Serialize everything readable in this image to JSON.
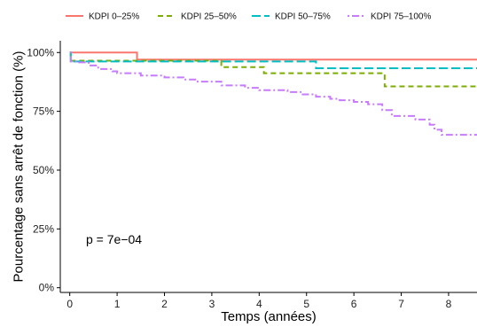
{
  "chart_data": {
    "type": "line",
    "subtype": "kaplan-meier-step",
    "xlabel": "Temps (années)",
    "ylabel": "Pourcentage sans arrêt de fonction (%)",
    "xlim": [
      -0.2,
      8.6
    ],
    "ylim": [
      -0.02,
      1.05
    ],
    "xticks": [
      0,
      1,
      2,
      3,
      4,
      5,
      6,
      7,
      8
    ],
    "xtick_labels": [
      "0",
      "1",
      "2",
      "3",
      "4",
      "5",
      "6",
      "7",
      "8"
    ],
    "yticks": [
      0,
      0.25,
      0.5,
      0.75,
      1.0
    ],
    "ytick_labels": [
      "0%",
      "25%",
      "50%",
      "75%",
      "100%"
    ],
    "grid": false,
    "legend_position": "top",
    "annotation": "p = 7e−04",
    "series": [
      {
        "name": "KDPI 0–25%",
        "color": "#F8766D",
        "dash": "solid",
        "x": [
          0,
          1.42,
          8.6
        ],
        "y": [
          1.0,
          0.97,
          0.97
        ]
      },
      {
        "name": "KDPI 25–50%",
        "color": "#7CAE00",
        "dash": "dashed",
        "x": [
          0,
          0.02,
          3.2,
          4.1,
          6.65,
          8.6
        ],
        "y": [
          1.0,
          0.965,
          0.938,
          0.912,
          0.856,
          0.856
        ]
      },
      {
        "name": "KDPI 50–75%",
        "color": "#00BFC4",
        "dash": "longdash",
        "x": [
          0,
          0.02,
          5.2,
          8.6
        ],
        "y": [
          1.0,
          0.962,
          0.933,
          0.933
        ]
      },
      {
        "name": "KDPI 75–100%",
        "color": "#C77CFF",
        "dash": "dotdash",
        "x": [
          0,
          0.02,
          0.2,
          0.4,
          0.6,
          0.9,
          1.0,
          1.5,
          2.0,
          2.4,
          2.7,
          3.2,
          3.7,
          4.0,
          4.6,
          4.9,
          5.2,
          5.5,
          5.7,
          6.0,
          6.3,
          6.6,
          6.8,
          7.3,
          7.6,
          7.7,
          7.85,
          8.6
        ],
        "y": [
          1.0,
          0.962,
          0.958,
          0.945,
          0.93,
          0.92,
          0.912,
          0.902,
          0.894,
          0.885,
          0.876,
          0.86,
          0.85,
          0.84,
          0.832,
          0.822,
          0.812,
          0.803,
          0.797,
          0.79,
          0.78,
          0.755,
          0.73,
          0.715,
          0.693,
          0.672,
          0.65,
          0.65
        ]
      }
    ]
  }
}
